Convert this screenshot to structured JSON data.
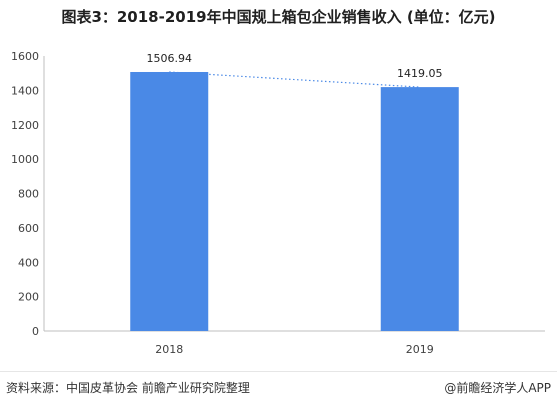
{
  "title": "图表3：2018-2019年中国规上箱包企业销售收入 (单位：亿元)",
  "footer": {
    "source": "资料来源：中国皮革协会 前瞻产业研究院整理",
    "credit": "@前瞻经济学人APP"
  },
  "colors": {
    "bar": "#4a89e6",
    "trend": "#4a89e6",
    "axis": "#bfbfbf",
    "text": "#404040"
  },
  "chart_data": {
    "type": "bar",
    "categories": [
      "2018",
      "2019"
    ],
    "values": [
      1506.94,
      1419.05
    ],
    "value_labels": [
      "1506.94",
      "1419.05"
    ],
    "yticks": [
      "0",
      "200",
      "400",
      "600",
      "800",
      "1000",
      "1200",
      "1400",
      "1600"
    ],
    "ylim": [
      0,
      1600
    ],
    "grid": false,
    "trend_line": "dotted line connecting bar tops"
  }
}
